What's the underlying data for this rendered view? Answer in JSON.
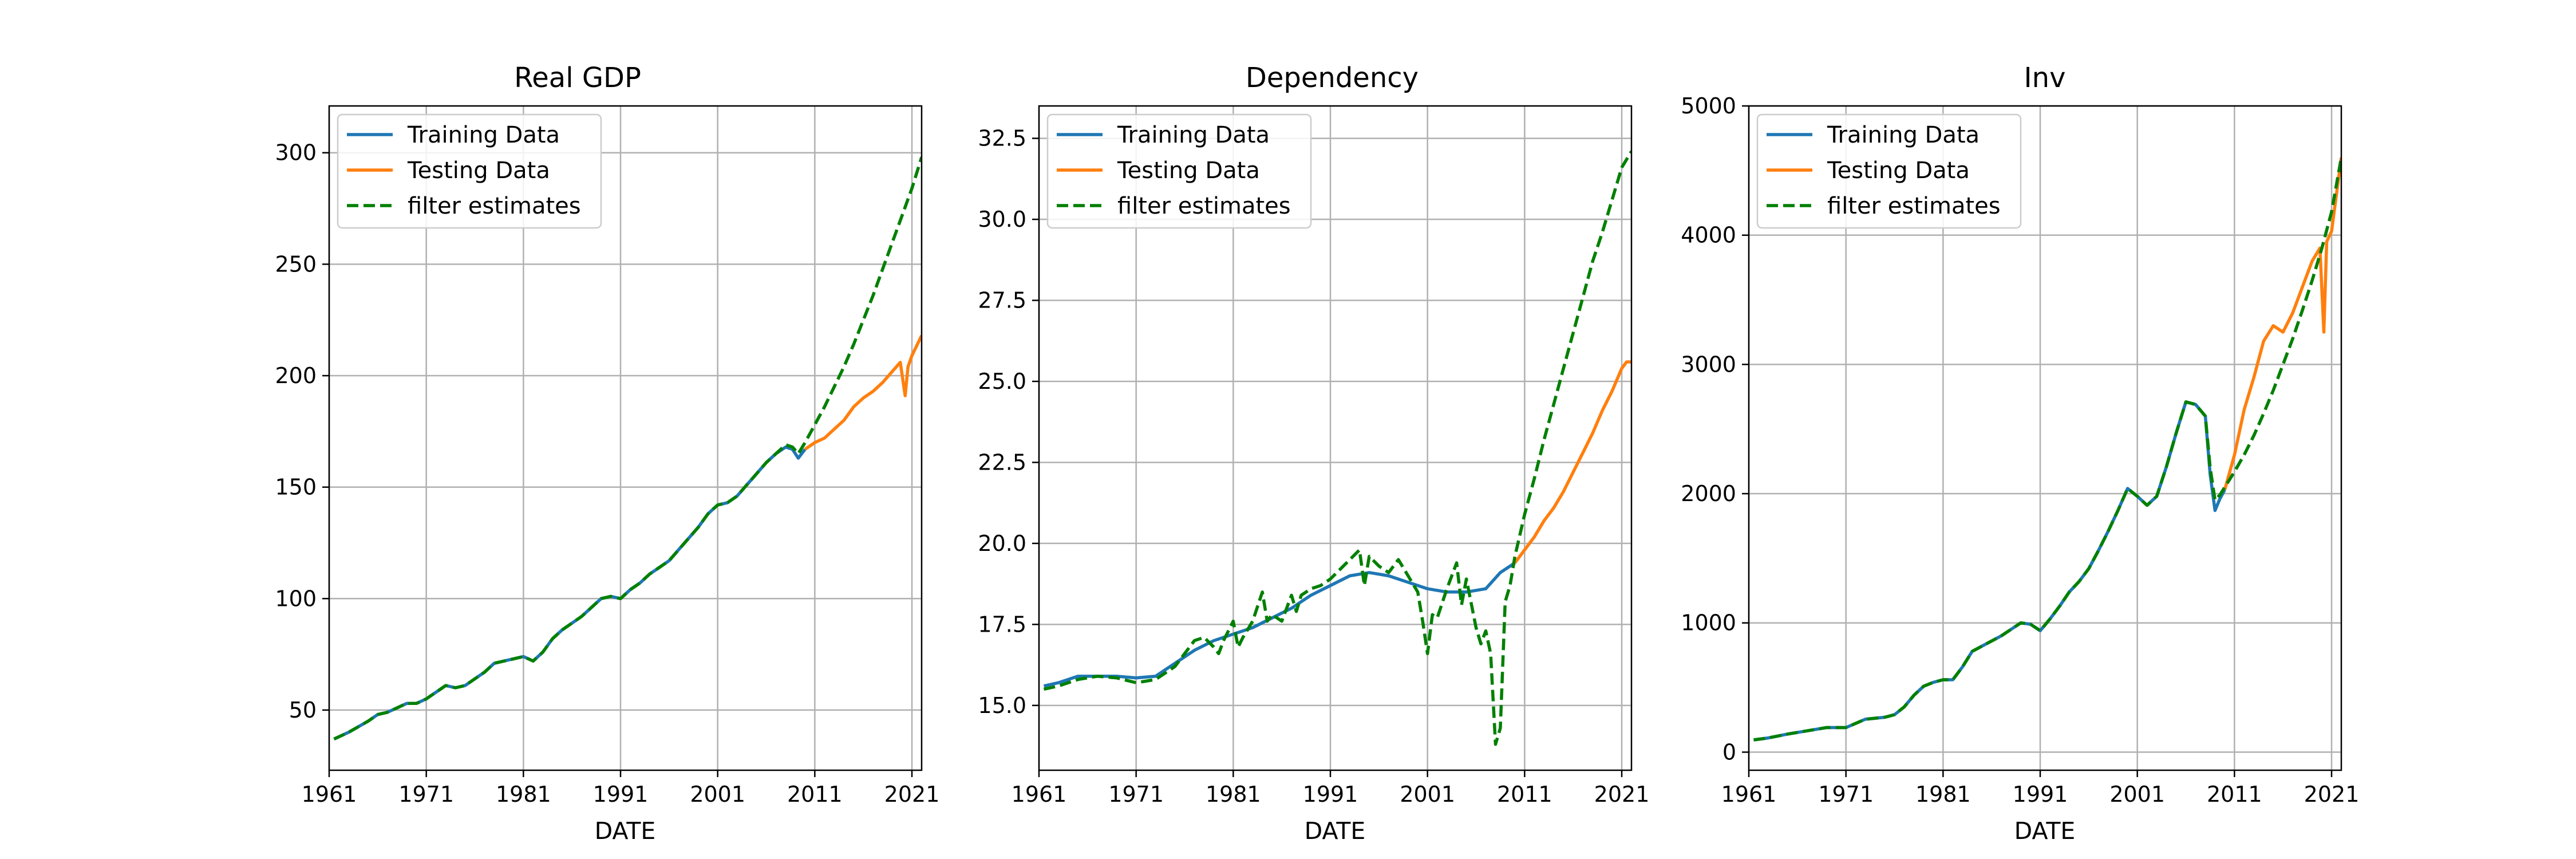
{
  "colors": {
    "training": "#1f77b4",
    "testing": "#ff7f0e",
    "filter": "#008000",
    "grid": "#b0b0b0",
    "axis": "#000000"
  },
  "chart_data": [
    {
      "type": "line",
      "title": "Real GDP",
      "xlabel": "DATE",
      "ylabel": "",
      "xlim": [
        1961,
        2022
      ],
      "ylim": [
        23,
        321
      ],
      "x_ticks": [
        1961,
        1971,
        1981,
        1991,
        2001,
        2011,
        2021
      ],
      "y_ticks": [
        50,
        100,
        150,
        200,
        250,
        300
      ],
      "y_tick_labels": [
        "50",
        "100",
        "150",
        "200",
        "250",
        "300"
      ],
      "grid": true,
      "legend_position": "top-left",
      "series": [
        {
          "name": "Training Data",
          "color_key": "training",
          "dash": "solid",
          "x": [
            1961.5,
            1963,
            1965,
            1966,
            1967,
            1968,
            1969,
            1970,
            1971,
            1972,
            1973,
            1974,
            1975,
            1976,
            1977,
            1978,
            1979,
            1980,
            1981,
            1982,
            1983,
            1984,
            1985,
            1986,
            1987,
            1988,
            1989,
            1990,
            1991,
            1992,
            1993,
            1994,
            1995,
            1996,
            1997,
            1998,
            1999,
            2000,
            2001,
            2002,
            2003,
            2004,
            2005,
            2006,
            2007,
            2008,
            2008.7,
            2009.3,
            2010
          ],
          "y": [
            37,
            40,
            45,
            48,
            49,
            51,
            53,
            53,
            55,
            58,
            61,
            60,
            61,
            64,
            67,
            71,
            72,
            73,
            74,
            72,
            76,
            82,
            86,
            89,
            92,
            96,
            100,
            101,
            100,
            104,
            107,
            111,
            114,
            117,
            122,
            127,
            132,
            138,
            142,
            143,
            146,
            151,
            156,
            161,
            165,
            168,
            167,
            163,
            167
          ]
        },
        {
          "name": "Testing Data",
          "color_key": "testing",
          "dash": "solid",
          "x": [
            2010,
            2011,
            2012,
            2013,
            2014,
            2015,
            2016,
            2017,
            2018,
            2019,
            2019.8,
            2020.3,
            2020.6,
            2021,
            2022
          ],
          "y": [
            167,
            170,
            172,
            176,
            180,
            186,
            190,
            193,
            197,
            202,
            206,
            191,
            204,
            209,
            218
          ]
        },
        {
          "name": "filter estimates",
          "color_key": "filter",
          "dash": "dashed",
          "x": [
            1961.5,
            1963,
            1965,
            1966,
            1967,
            1968,
            1969,
            1970,
            1971,
            1972,
            1973,
            1974,
            1975,
            1976,
            1977,
            1978,
            1979,
            1980,
            1981,
            1982,
            1983,
            1984,
            1985,
            1986,
            1987,
            1988,
            1989,
            1990,
            1991,
            1992,
            1993,
            1994,
            1995,
            1996,
            1997,
            1998,
            1999,
            2000,
            2001,
            2002,
            2003,
            2004,
            2005,
            2006,
            2007,
            2008,
            2008.7,
            2009.3,
            2010,
            2011,
            2012,
            2013,
            2014,
            2015,
            2016,
            2017,
            2018,
            2019,
            2020,
            2021,
            2022
          ],
          "y": [
            37,
            40,
            45,
            48,
            49,
            51,
            53,
            53,
            55,
            58,
            61,
            60,
            61,
            64,
            67,
            71,
            72,
            73,
            74,
            72,
            76,
            82,
            86,
            89,
            92,
            96,
            100,
            101,
            100,
            104,
            107,
            111,
            114,
            117,
            122,
            127,
            132,
            138,
            142,
            143,
            146,
            151,
            156,
            161,
            165,
            169,
            168,
            165,
            170,
            178,
            186,
            195,
            204,
            214,
            225,
            236,
            248,
            260,
            272,
            284,
            298
          ]
        }
      ]
    },
    {
      "type": "line",
      "title": "Dependency",
      "xlabel": "DATE",
      "ylabel": "",
      "xlim": [
        1961,
        2022
      ],
      "ylim": [
        13.0,
        33.5
      ],
      "x_ticks": [
        1961,
        1971,
        1981,
        1991,
        2001,
        2011,
        2021
      ],
      "y_ticks": [
        15.0,
        17.5,
        20.0,
        22.5,
        25.0,
        27.5,
        30.0,
        32.5
      ],
      "y_tick_labels": [
        "15.0",
        "17.5",
        "20.0",
        "22.5",
        "25.0",
        "27.5",
        "30.0",
        "32.5"
      ],
      "grid": true,
      "legend_position": "top-left",
      "series": [
        {
          "name": "Training Data",
          "color_key": "training",
          "dash": "solid",
          "x": [
            1961.5,
            1963,
            1965,
            1967,
            1969,
            1971,
            1973,
            1975,
            1977,
            1979,
            1981,
            1983,
            1985,
            1987,
            1989,
            1991,
            1993,
            1995,
            1997,
            1999,
            2001,
            2003,
            2005,
            2007,
            2008.5,
            2010
          ],
          "y": [
            15.6,
            15.7,
            15.9,
            15.9,
            15.9,
            15.85,
            15.9,
            16.3,
            16.7,
            17.0,
            17.2,
            17.4,
            17.7,
            18.0,
            18.4,
            18.7,
            19.0,
            19.1,
            19.0,
            18.8,
            18.6,
            18.5,
            18.5,
            18.6,
            19.1,
            19.4
          ]
        },
        {
          "name": "Testing Data",
          "color_key": "testing",
          "dash": "solid",
          "x": [
            2010,
            2011,
            2012,
            2013,
            2014,
            2015,
            2016,
            2017,
            2018,
            2019,
            2020,
            2021,
            2021.5,
            2022
          ],
          "y": [
            19.4,
            19.8,
            20.2,
            20.7,
            21.1,
            21.6,
            22.2,
            22.8,
            23.4,
            24.1,
            24.7,
            25.4,
            25.6,
            25.6
          ]
        },
        {
          "name": "filter estimates",
          "color_key": "filter",
          "dash": "dashed",
          "x": [
            1961.5,
            1963,
            1965,
            1967,
            1969,
            1971,
            1973,
            1975,
            1976,
            1977,
            1978,
            1979,
            1979.5,
            1980,
            1981,
            1981.5,
            1982,
            1983,
            1984,
            1984.5,
            1985,
            1986,
            1987,
            1987.5,
            1988,
            1989,
            1990,
            1991,
            1992,
            1993,
            1994,
            1994.5,
            1995,
            1996,
            1997,
            1998,
            1999,
            2000,
            2000.5,
            2001,
            2001.5,
            2002,
            2003,
            2004,
            2004.5,
            2005,
            2006,
            2006.5,
            2007,
            2007.5,
            2008,
            2008.5,
            2009,
            2009.5,
            2010,
            2011,
            2012,
            2013,
            2014,
            2015,
            2016,
            2017,
            2018,
            2019,
            2020,
            2021,
            2022
          ],
          "y": [
            15.5,
            15.6,
            15.8,
            15.9,
            15.85,
            15.7,
            15.8,
            16.2,
            16.6,
            17.0,
            17.1,
            16.8,
            16.6,
            17.0,
            17.6,
            16.8,
            17.1,
            17.6,
            18.5,
            17.6,
            17.8,
            17.6,
            18.4,
            17.9,
            18.4,
            18.6,
            18.7,
            18.9,
            19.2,
            19.5,
            19.8,
            18.7,
            19.6,
            19.3,
            19.1,
            19.5,
            19.0,
            18.5,
            17.6,
            16.6,
            17.8,
            17.7,
            18.6,
            19.4,
            18.1,
            18.9,
            17.4,
            16.9,
            17.3,
            16.6,
            13.8,
            14.3,
            18.2,
            18.7,
            19.6,
            20.9,
            22.0,
            23.2,
            24.3,
            25.4,
            26.5,
            27.6,
            28.7,
            29.6,
            30.6,
            31.6,
            32.1
          ]
        }
      ]
    },
    {
      "type": "line",
      "title": "Inv",
      "xlabel": "DATE",
      "ylabel": "",
      "xlim": [
        1961,
        2022
      ],
      "ylim": [
        -140,
        5000
      ],
      "x_ticks": [
        1961,
        1971,
        1981,
        1991,
        2001,
        2011,
        2021
      ],
      "y_ticks": [
        0,
        1000,
        2000,
        3000,
        4000,
        5000
      ],
      "y_tick_labels": [
        "0",
        "1000",
        "2000",
        "3000",
        "4000",
        "5000"
      ],
      "grid": true,
      "legend_position": "top-left",
      "series": [
        {
          "name": "Training Data",
          "color_key": "training",
          "dash": "solid",
          "x": [
            1961.5,
            1963,
            1965,
            1967,
            1969,
            1971,
            1973,
            1975,
            1976,
            1977,
            1978,
            1979,
            1980,
            1981,
            1982,
            1983,
            1984,
            1985,
            1986,
            1987,
            1988,
            1989,
            1990,
            1991,
            1992,
            1993,
            1994,
            1995,
            1996,
            1997,
            1998,
            1999,
            2000,
            2001,
            2002,
            2003,
            2004,
            2005,
            2006,
            2007,
            2008,
            2008.5,
            2009,
            2009.5,
            2010
          ],
          "y": [
            95,
            110,
            140,
            165,
            190,
            190,
            255,
            270,
            290,
            350,
            440,
            510,
            540,
            560,
            560,
            660,
            780,
            820,
            860,
            900,
            950,
            1000,
            990,
            940,
            1030,
            1130,
            1240,
            1320,
            1420,
            1560,
            1710,
            1870,
            2040,
            1980,
            1910,
            1980,
            2210,
            2470,
            2710,
            2690,
            2600,
            2150,
            1870,
            1960,
            2030
          ]
        },
        {
          "name": "Testing Data",
          "color_key": "testing",
          "dash": "solid",
          "x": [
            2010,
            2011,
            2012,
            2013,
            2014,
            2015,
            2016,
            2017,
            2018,
            2019,
            2019.8,
            2020.2,
            2020.5,
            2021,
            2022
          ],
          "y": [
            2030,
            2300,
            2650,
            2900,
            3180,
            3300,
            3250,
            3400,
            3600,
            3800,
            3900,
            3250,
            3950,
            4030,
            4600
          ]
        },
        {
          "name": "filter estimates",
          "color_key": "filter",
          "dash": "dashed",
          "x": [
            1961.5,
            1963,
            1965,
            1967,
            1969,
            1971,
            1973,
            1975,
            1976,
            1977,
            1978,
            1979,
            1980,
            1981,
            1982,
            1983,
            1984,
            1985,
            1986,
            1987,
            1988,
            1989,
            1990,
            1991,
            1992,
            1993,
            1994,
            1995,
            1996,
            1997,
            1998,
            1999,
            2000,
            2001,
            2002,
            2003,
            2004,
            2005,
            2006,
            2007,
            2008,
            2008.5,
            2009,
            2009.5,
            2010,
            2011,
            2012,
            2013,
            2014,
            2015,
            2016,
            2017,
            2018,
            2019,
            2020,
            2021,
            2022
          ],
          "y": [
            95,
            110,
            140,
            165,
            190,
            190,
            255,
            270,
            290,
            350,
            440,
            510,
            540,
            560,
            560,
            660,
            780,
            820,
            860,
            900,
            950,
            1000,
            990,
            940,
            1030,
            1130,
            1240,
            1320,
            1420,
            1560,
            1710,
            1870,
            2040,
            1980,
            1910,
            1980,
            2210,
            2470,
            2710,
            2690,
            2600,
            2200,
            1950,
            1990,
            2050,
            2170,
            2300,
            2450,
            2620,
            2800,
            3000,
            3200,
            3420,
            3650,
            3900,
            4180,
            4600
          ]
        }
      ]
    }
  ]
}
